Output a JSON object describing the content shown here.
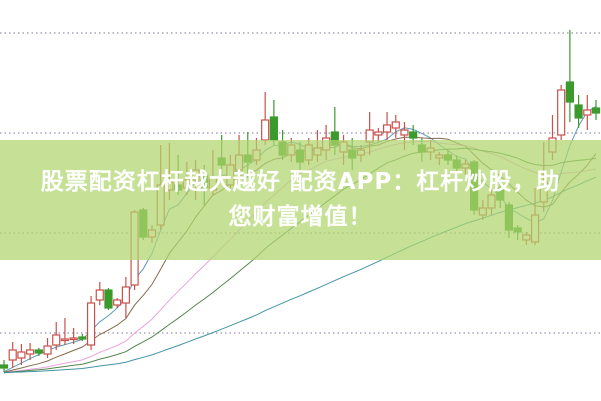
{
  "banner": {
    "line1": "股票配资杠杆越大越好 配资APP：杠杆炒股，助",
    "line2": "您财富增值！"
  },
  "chart_data": {
    "type": "candlestick",
    "title": "",
    "xlabel": "",
    "ylabel": "",
    "grid": "horizontal dotted",
    "axes_labels_shown": false,
    "colors": {
      "up": "#c9504a",
      "down": "#3a9a2c",
      "banner": "#b0d66e",
      "grid": "#9a8fb0"
    },
    "moving_averages": [
      {
        "period": 5,
        "color": "#4a8fb0"
      },
      {
        "period": 10,
        "color": "#7a5a3a"
      },
      {
        "period": 20,
        "color": "#e89ad8"
      },
      {
        "period": 30,
        "color": "#3f7a3a"
      },
      {
        "period": 60,
        "color": "#2e8a9a"
      }
    ],
    "candles": [
      [
        35,
        32,
        40,
        28
      ],
      [
        40,
        50,
        58,
        32
      ],
      [
        42,
        48,
        56,
        35
      ],
      [
        46,
        50,
        57,
        40
      ],
      [
        50,
        47,
        52,
        44
      ],
      [
        46,
        54,
        62,
        42
      ],
      [
        55,
        65,
        78,
        50
      ],
      [
        60,
        61,
        82,
        55
      ],
      [
        61,
        62,
        72,
        56
      ],
      [
        63,
        61,
        66,
        59
      ],
      [
        55,
        97,
        104,
        50
      ],
      [
        100,
        110,
        118,
        95
      ],
      [
        110,
        92,
        112,
        90
      ],
      [
        95,
        100,
        102,
        92
      ],
      [
        97,
        113,
        123,
        82
      ],
      [
        115,
        188,
        190,
        110
      ],
      [
        190,
        163,
        192,
        160
      ],
      [
        163,
        170,
        175,
        157
      ],
      [
        175,
        215,
        255,
        170
      ],
      [
        210,
        218,
        257,
        200
      ],
      [
        215,
        210,
        245,
        205
      ],
      [
        212,
        220,
        238,
        205
      ],
      [
        220,
        230,
        240,
        200
      ],
      [
        225,
        212,
        235,
        195
      ],
      [
        210,
        222,
        250,
        205
      ],
      [
        242,
        235,
        265,
        222
      ],
      [
        215,
        235,
        245,
        210
      ],
      [
        230,
        245,
        265,
        225
      ],
      [
        245,
        238,
        268,
        222
      ],
      [
        240,
        250,
        262,
        235
      ],
      [
        260,
        280,
        308,
        255
      ],
      [
        283,
        260,
        300,
        255
      ],
      [
        258,
        245,
        270,
        240
      ],
      [
        245,
        255,
        262,
        238
      ],
      [
        250,
        238,
        258,
        230
      ],
      [
        240,
        255,
        262,
        235
      ],
      [
        245,
        252,
        270,
        238
      ],
      [
        250,
        262,
        275,
        240
      ],
      [
        268,
        255,
        293,
        245
      ],
      [
        248,
        258,
        265,
        235
      ],
      [
        250,
        242,
        262,
        230
      ],
      [
        245,
        250,
        255,
        238
      ],
      [
        258,
        270,
        288,
        245
      ],
      [
        265,
        268,
        272,
        258
      ],
      [
        268,
        275,
        288,
        260
      ],
      [
        272,
        278,
        285,
        262
      ],
      [
        265,
        270,
        278,
        250
      ],
      [
        268,
        262,
        275,
        255
      ],
      [
        255,
        248,
        262,
        238
      ],
      [
        248,
        252,
        260,
        240
      ],
      [
        242,
        245,
        248,
        235
      ],
      [
        245,
        240,
        250,
        235
      ],
      [
        240,
        232,
        245,
        225
      ],
      [
        232,
        236,
        240,
        225
      ],
      [
        238,
        190,
        240,
        185
      ],
      [
        185,
        192,
        200,
        180
      ],
      [
        192,
        205,
        212,
        185
      ],
      [
        212,
        200,
        220,
        192
      ],
      [
        195,
        170,
        198,
        162
      ],
      [
        172,
        168,
        175,
        160
      ],
      [
        160,
        165,
        168,
        155
      ],
      [
        158,
        185,
        212,
        155
      ],
      [
        198,
        218,
        258,
        188
      ],
      [
        248,
        262,
        285,
        240
      ],
      [
        265,
        310,
        315,
        260
      ],
      [
        318,
        298,
        370,
        278
      ],
      [
        295,
        282,
        305,
        272
      ],
      [
        285,
        290,
        305,
        270
      ],
      [
        292,
        287,
        300,
        280
      ]
    ]
  }
}
